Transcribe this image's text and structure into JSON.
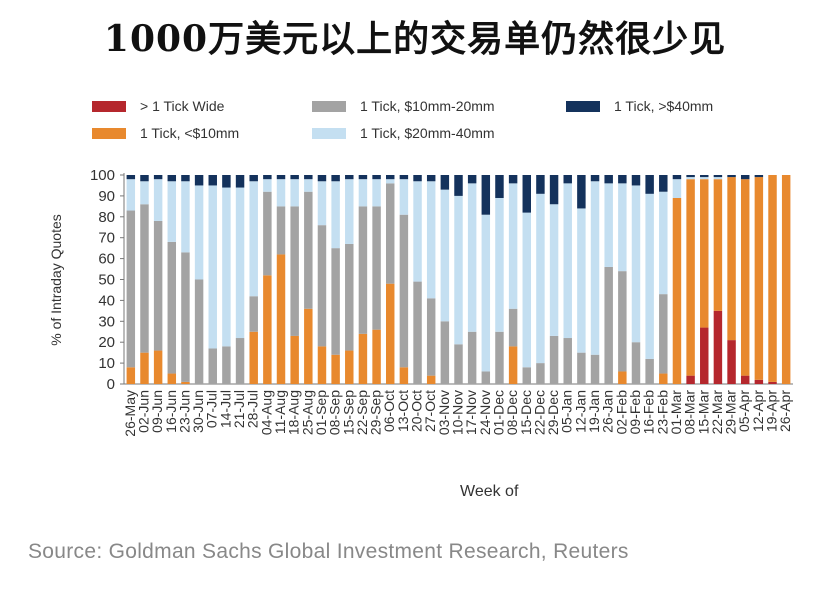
{
  "title": "1000万美元以上的交易单仍然很少见",
  "source": "Source: Goldman Sachs Global Investment Research, Reuters",
  "chart_data": {
    "type": "bar",
    "stacked": true,
    "ylabel": "% of Intraday Quotes",
    "xlabel": "Week of",
    "ylim": [
      0,
      100
    ],
    "yticks": [
      0,
      10,
      20,
      30,
      40,
      50,
      60,
      70,
      80,
      90,
      100
    ],
    "grid": false,
    "legend_position": "top",
    "categories": [
      "26-May",
      "02-Jun",
      "09-Jun",
      "16-Jun",
      "23-Jun",
      "30-Jun",
      "07-Jul",
      "14-Jul",
      "21-Jul",
      "28-Jul",
      "04-Aug",
      "11-Aug",
      "18-Aug",
      "25-Aug",
      "01-Sep",
      "08-Sep",
      "15-Sep",
      "22-Sep",
      "29-Sep",
      "06-Oct",
      "13-Oct",
      "20-Oct",
      "27-Oct",
      "03-Nov",
      "10-Nov",
      "17-Nov",
      "24-Nov",
      "01-Dec",
      "08-Dec",
      "15-Dec",
      "22-Dec",
      "29-Dec",
      "05-Jan",
      "12-Jan",
      "19-Jan",
      "26-Jan",
      "02-Feb",
      "09-Feb",
      "16-Feb",
      "23-Feb",
      "01-Mar",
      "08-Mar",
      "15-Mar",
      "22-Mar",
      "29-Mar",
      "05-Apr",
      "12-Apr",
      "19-Apr",
      "26-Apr"
    ],
    "series": [
      {
        "name": "> 1 Tick Wide",
        "color": "#b5272d",
        "values": [
          0,
          0,
          0,
          0,
          0,
          0,
          0,
          0,
          0,
          0,
          0,
          0,
          0,
          0,
          0,
          0,
          0,
          0,
          0,
          0,
          0,
          0,
          0,
          0,
          0,
          0,
          0,
          0,
          0,
          0,
          0,
          0,
          0,
          0,
          0,
          0,
          0,
          0,
          0,
          0,
          0,
          4,
          27,
          35,
          21,
          4,
          2,
          1,
          0
        ]
      },
      {
        "name": "1 Tick, <$10mm",
        "color": "#e8892e",
        "values": [
          8,
          15,
          16,
          5,
          1,
          0,
          0,
          0,
          0,
          25,
          52,
          62,
          23,
          36,
          18,
          14,
          16,
          24,
          26,
          48,
          8,
          0,
          4,
          0,
          0,
          0,
          0,
          0,
          18,
          0,
          0,
          0,
          0,
          0,
          0,
          0,
          6,
          0,
          0,
          5,
          89,
          94,
          71,
          63,
          78,
          94,
          97,
          99,
          100
        ]
      },
      {
        "name": "1 Tick, $10mm-20mm",
        "color": "#a3a3a3",
        "values": [
          75,
          71,
          62,
          63,
          62,
          50,
          17,
          18,
          22,
          17,
          40,
          23,
          62,
          56,
          58,
          51,
          51,
          61,
          59,
          48,
          73,
          49,
          37,
          30,
          19,
          25,
          6,
          25,
          18,
          8,
          10,
          23,
          22,
          15,
          14,
          56,
          48,
          20,
          12,
          38,
          0,
          0,
          0,
          0,
          0,
          0,
          0,
          0,
          0
        ]
      },
      {
        "name": "1 Tick, $20mm-40mm",
        "color": "#c4dff1",
        "values": [
          15,
          11,
          20,
          29,
          34,
          45,
          78,
          76,
          72,
          55,
          6,
          13,
          13,
          6,
          21,
          32,
          31,
          13,
          13,
          2,
          17,
          48,
          56,
          63,
          71,
          71,
          75,
          64,
          60,
          74,
          81,
          63,
          74,
          69,
          83,
          40,
          42,
          75,
          79,
          49,
          9,
          1,
          1,
          1,
          0,
          0,
          0,
          0,
          0
        ]
      },
      {
        "name": "1 Tick, >$40mm",
        "color": "#14325c",
        "values": [
          2,
          3,
          2,
          3,
          3,
          5,
          5,
          6,
          6,
          3,
          2,
          2,
          2,
          2,
          3,
          3,
          2,
          2,
          2,
          2,
          2,
          3,
          3,
          7,
          10,
          4,
          19,
          11,
          4,
          18,
          9,
          14,
          4,
          16,
          3,
          4,
          4,
          5,
          9,
          8,
          2,
          1,
          1,
          1,
          1,
          2,
          1,
          0,
          0
        ]
      }
    ]
  }
}
